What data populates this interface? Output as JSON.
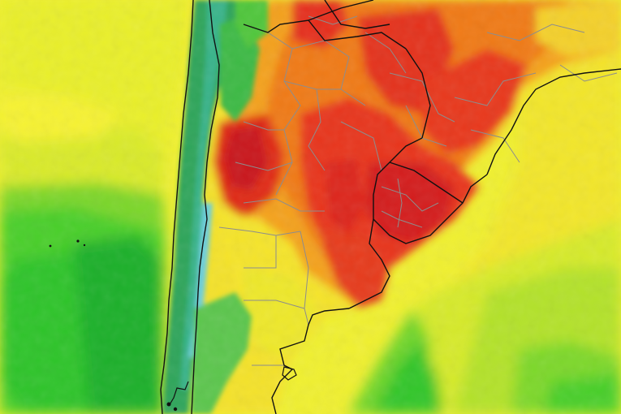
{
  "map": {
    "type": "temperature-anomaly-heatmap",
    "region": "",
    "colors": {
      "ocean_far": "#f6f433",
      "ocean_yellow": "#e7ef2a",
      "ocean_lightgreen": "#a6e22c",
      "ocean_green": "#4fd12b",
      "ocean_deepgreen": "#21b82a",
      "andes_teal": "#27a86b",
      "andes_cyan": "#63c7d3",
      "heat_orange": "#f4a21f",
      "heat_darkorange": "#f07d16",
      "heat_red": "#e8311b",
      "heat_deepred": "#c8141a",
      "land_yellow": "#f6e327",
      "border_country": "#111111",
      "border_province": "#8d8d8d"
    },
    "legend": null,
    "labels": []
  }
}
